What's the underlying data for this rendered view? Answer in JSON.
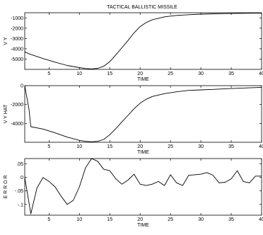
{
  "chart_data": [
    {
      "type": "line",
      "title": "TACTICAL BALLISTIC MISSILE",
      "xlabel": "TIME",
      "ylabel": "V Y",
      "xlim": [
        1,
        40
      ],
      "ylim": [
        -6000,
        -500
      ],
      "xticks": [
        5,
        10,
        15,
        20,
        25,
        30,
        35,
        40
      ],
      "yticks": [
        -1000,
        -2000,
        -3000,
        -4000,
        -5000
      ],
      "grid": false,
      "series": [
        {
          "x": [
            1,
            2,
            4,
            6,
            8,
            10,
            11,
            12,
            13,
            14,
            15,
            16,
            17,
            18,
            19,
            20,
            21,
            22,
            24,
            26,
            28,
            30,
            32,
            34,
            36,
            38,
            40
          ],
          "y": [
            -4300,
            -4550,
            -4950,
            -5300,
            -5620,
            -5830,
            -5920,
            -5950,
            -5900,
            -5700,
            -5250,
            -4600,
            -3900,
            -3200,
            -2450,
            -1850,
            -1450,
            -1180,
            -900,
            -760,
            -690,
            -640,
            -600,
            -580,
            -560,
            -550,
            -540
          ]
        }
      ]
    },
    {
      "type": "line",
      "title": "",
      "xlabel": "TIME",
      "ylabel": "V Y HAT",
      "xlim": [
        1,
        40
      ],
      "ylim": [
        -6000,
        0
      ],
      "xticks": [
        5,
        10,
        15,
        20,
        25,
        30,
        35,
        40
      ],
      "yticks": [
        0,
        -2000,
        -4000
      ],
      "grid": false,
      "series": [
        {
          "x": [
            1,
            1.7,
            2,
            4,
            6,
            8,
            10,
            11,
            12,
            13,
            14,
            15,
            16,
            17,
            18,
            19,
            20,
            21,
            22,
            24,
            26,
            28,
            30,
            32,
            34,
            36,
            38,
            40
          ],
          "y": [
            0,
            -2500,
            -4350,
            -4600,
            -5000,
            -5450,
            -5800,
            -5900,
            -5950,
            -5900,
            -5700,
            -5200,
            -4550,
            -3850,
            -3150,
            -2450,
            -1850,
            -1450,
            -1150,
            -850,
            -650,
            -500,
            -450,
            -400,
            -330,
            -280,
            -230,
            -180
          ]
        }
      ]
    },
    {
      "type": "line",
      "title": "",
      "xlabel": "TIME",
      "ylabel": "E R R O R",
      "xlim": [
        1,
        40
      ],
      "ylim": [
        -0.14,
        0.07
      ],
      "xticks": [
        5,
        10,
        15,
        20,
        25,
        30,
        35,
        40
      ],
      "yticks": [
        0.05,
        0,
        -0.05,
        -0.1
      ],
      "grid": false,
      "series": [
        {
          "x": [
            1,
            2,
            3,
            4,
            5,
            6,
            7,
            8,
            9,
            10,
            11,
            12,
            13,
            14,
            15,
            16,
            17,
            18,
            19,
            20,
            21,
            22,
            23,
            24,
            25,
            26,
            27,
            28,
            29,
            30,
            31,
            32,
            33,
            34,
            35,
            36,
            37,
            38,
            39,
            40
          ],
          "y": [
            0,
            -0.135,
            -0.04,
            0.0,
            -0.015,
            -0.035,
            -0.07,
            -0.1,
            -0.085,
            -0.035,
            0.035,
            0.07,
            0.06,
            0.03,
            0.025,
            -0.005,
            -0.025,
            -0.01,
            0.012,
            -0.025,
            -0.03,
            -0.025,
            -0.015,
            -0.03,
            0.01,
            -0.02,
            -0.03,
            0.008,
            0.01,
            0.012,
            0.018,
            0.008,
            -0.02,
            -0.018,
            -0.005,
            0.025,
            -0.015,
            -0.02,
            0.005,
            0.005
          ]
        }
      ]
    }
  ]
}
